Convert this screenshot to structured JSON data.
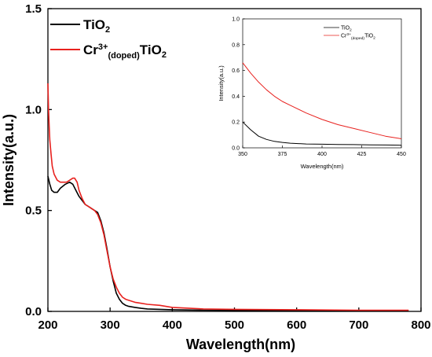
{
  "chart_data": [
    {
      "type": "line",
      "xlabel": "Wavelength(nm)",
      "ylabel": "Intensity(a.u.)",
      "xlim": [
        200,
        800
      ],
      "ylim": [
        0,
        1.5
      ],
      "xticks": [
        "200",
        "300",
        "400",
        "500",
        "600",
        "700",
        "800"
      ],
      "yticks": [
        "0.0",
        "0.5",
        "1.0",
        "1.5"
      ],
      "legend_position": "top-left",
      "series": [
        {
          "legend": {
            "base": "TiO",
            "sub": "2"
          },
          "color": "#000000",
          "x": [
            200,
            203,
            206,
            210,
            215,
            220,
            228,
            235,
            240,
            245,
            250,
            255,
            260,
            265,
            270,
            275,
            280,
            285,
            290,
            295,
            300,
            305,
            310,
            315,
            320,
            325,
            330,
            340,
            350,
            360,
            380,
            400,
            450,
            500,
            600,
            700,
            780
          ],
          "y": [
            0.67,
            0.63,
            0.6,
            0.59,
            0.59,
            0.61,
            0.63,
            0.64,
            0.63,
            0.6,
            0.57,
            0.55,
            0.53,
            0.52,
            0.51,
            0.5,
            0.49,
            0.45,
            0.39,
            0.31,
            0.22,
            0.15,
            0.09,
            0.06,
            0.04,
            0.03,
            0.025,
            0.02,
            0.015,
            0.012,
            0.01,
            0.008,
            0.006,
            0.005,
            0.005,
            0.004,
            0.004
          ]
        },
        {
          "legend": {
            "base": "Cr",
            "sup": "3+",
            "sub": "(doped)",
            "tail": "TiO",
            "tail_sub": "2"
          },
          "color": "#e8211e",
          "x": [
            200,
            201,
            202,
            203,
            205,
            207,
            210,
            215,
            220,
            225,
            230,
            235,
            240,
            243,
            247,
            250,
            255,
            260,
            265,
            270,
            275,
            280,
            285,
            290,
            295,
            300,
            305,
            310,
            315,
            320,
            325,
            330,
            340,
            350,
            360,
            380,
            400,
            450,
            500,
            600,
            700,
            780
          ],
          "y": [
            1.13,
            1.0,
            0.92,
            0.85,
            0.78,
            0.72,
            0.68,
            0.65,
            0.64,
            0.64,
            0.64,
            0.65,
            0.66,
            0.66,
            0.64,
            0.6,
            0.56,
            0.53,
            0.52,
            0.51,
            0.5,
            0.48,
            0.44,
            0.38,
            0.3,
            0.22,
            0.16,
            0.12,
            0.09,
            0.07,
            0.06,
            0.055,
            0.045,
            0.04,
            0.035,
            0.03,
            0.02,
            0.012,
            0.01,
            0.008,
            0.006,
            0.006
          ]
        }
      ]
    },
    {
      "type": "line",
      "role": "inset",
      "xlabel": "Wavelength(nm)",
      "ylabel": "Intensity(a.u.)",
      "xlim": [
        350,
        450
      ],
      "ylim": [
        0,
        1.0
      ],
      "xticks": [
        "350",
        "375",
        "400",
        "425",
        "450"
      ],
      "yticks": [
        "0.0",
        "0.2",
        "0.4",
        "0.6",
        "0.8",
        "1.0"
      ],
      "legend_position": "top-left",
      "series": [
        {
          "legend": {
            "base": "TiO",
            "sub": "2"
          },
          "color": "#000000",
          "x": [
            350,
            355,
            360,
            365,
            370,
            375,
            380,
            390,
            400,
            410,
            420,
            430,
            440,
            450
          ],
          "y": [
            0.2,
            0.14,
            0.09,
            0.065,
            0.05,
            0.042,
            0.036,
            0.03,
            0.028,
            0.026,
            0.025,
            0.023,
            0.022,
            0.02
          ]
        },
        {
          "legend": {
            "base": "Cr",
            "sup": "3+",
            "sub": "(doped)",
            "tail": "TiO",
            "tail_sub": "2"
          },
          "color": "#e8211e",
          "x": [
            350,
            355,
            360,
            365,
            370,
            375,
            380,
            390,
            400,
            410,
            420,
            430,
            440,
            450
          ],
          "y": [
            0.66,
            0.58,
            0.51,
            0.45,
            0.4,
            0.36,
            0.33,
            0.27,
            0.22,
            0.18,
            0.15,
            0.12,
            0.09,
            0.07
          ]
        }
      ]
    }
  ]
}
